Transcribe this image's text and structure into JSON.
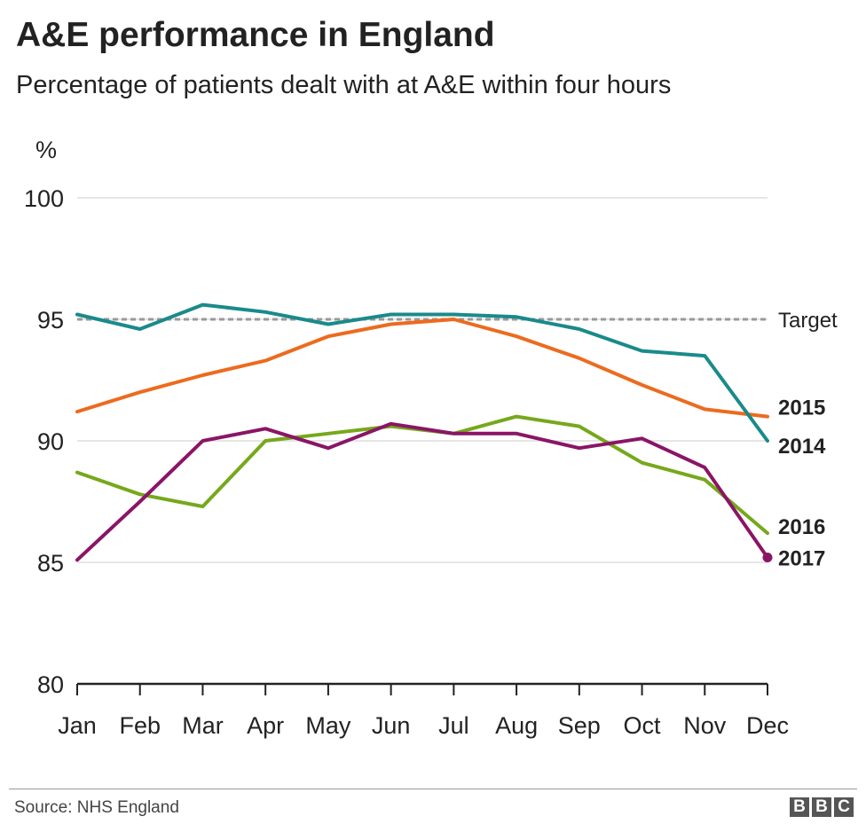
{
  "title": "A&E performance in England",
  "subtitle": "Percentage of patients dealt with at A&E within four hours",
  "source": "Source: NHS England",
  "logo": [
    "B",
    "B",
    "C"
  ],
  "colors": {
    "2014": "#1a8a8a",
    "2015": "#ec6b1e",
    "2016": "#76a81c",
    "2017": "#8a1566",
    "target": "#999999",
    "grid": "#dddddd",
    "axis": "#222222"
  },
  "chart_data": {
    "type": "line",
    "y_unit": "%",
    "ylim": [
      80,
      100
    ],
    "yticks": [
      80,
      85,
      90,
      95,
      100
    ],
    "grid": true,
    "categories": [
      "Jan",
      "Feb",
      "Mar",
      "Apr",
      "May",
      "Jun",
      "Jul",
      "Aug",
      "Sep",
      "Oct",
      "Nov",
      "Dec"
    ],
    "target": {
      "label": "Target",
      "value": 95
    },
    "series": [
      {
        "name": "2014",
        "values": [
          95.2,
          94.6,
          95.6,
          95.3,
          94.8,
          95.2,
          95.2,
          95.1,
          94.6,
          93.7,
          93.5,
          90.0
        ]
      },
      {
        "name": "2015",
        "values": [
          91.2,
          92.0,
          92.7,
          93.3,
          94.3,
          94.8,
          95.0,
          94.3,
          93.4,
          92.3,
          91.3,
          91.0
        ]
      },
      {
        "name": "2016",
        "values": [
          88.7,
          87.8,
          87.3,
          90.0,
          90.3,
          90.6,
          90.3,
          91.0,
          90.6,
          89.1,
          88.4,
          86.2
        ]
      },
      {
        "name": "2017",
        "values": [
          85.1,
          87.5,
          90.0,
          90.5,
          89.7,
          90.7,
          90.3,
          90.3,
          89.7,
          90.1,
          88.9,
          85.2
        ]
      }
    ]
  }
}
